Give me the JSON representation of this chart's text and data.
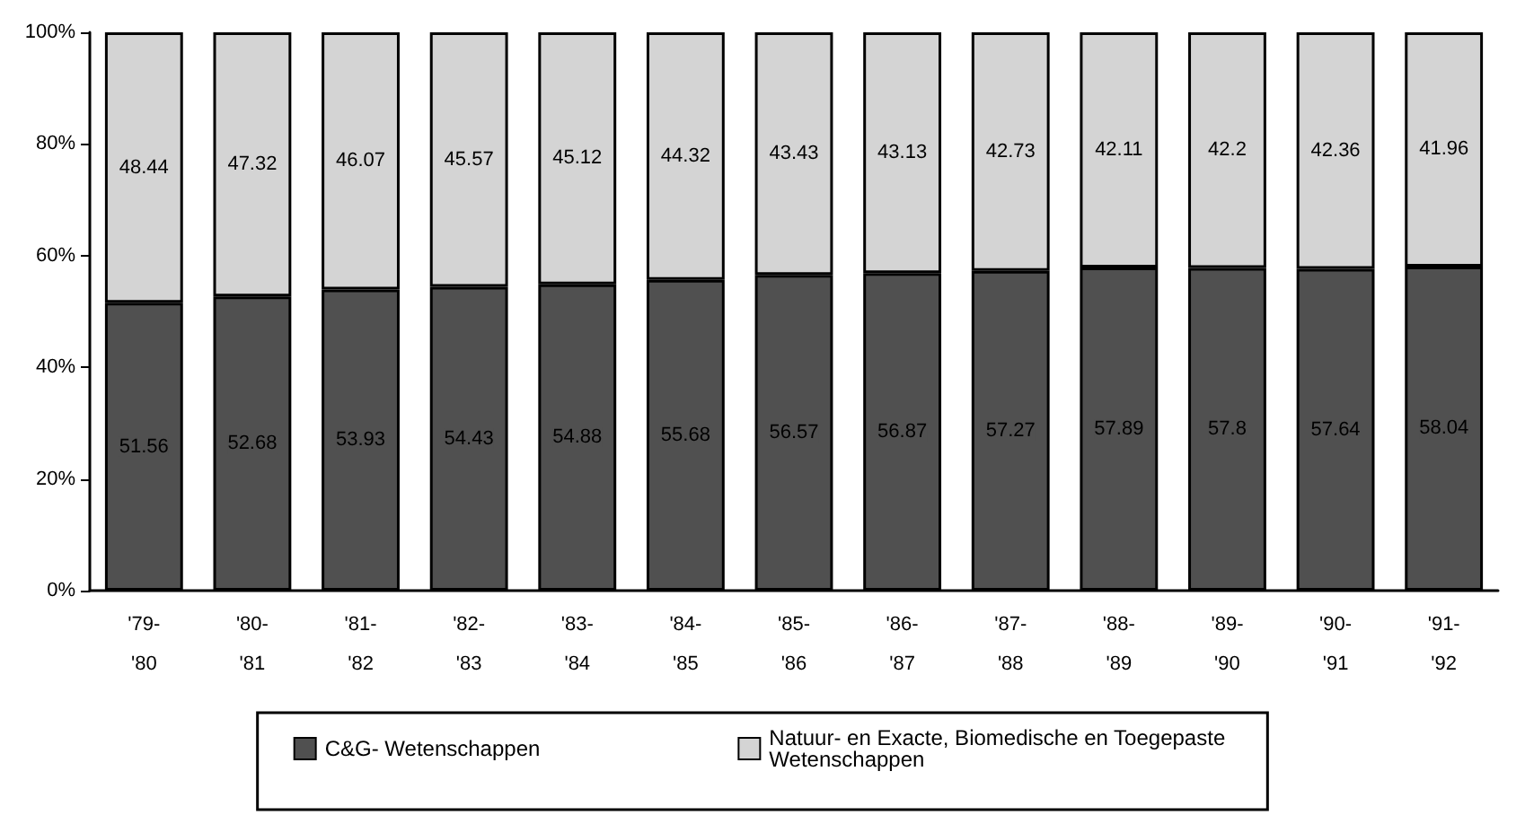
{
  "chart_data": {
    "type": "bar",
    "stacked": true,
    "categories": [
      "'79-\n'80",
      "'80-\n'81",
      "'81-\n'82",
      "'82-\n'83",
      "'83-\n'84",
      "'84-\n'85",
      "'85-\n'86",
      "'86-\n'87",
      "'87-\n'88",
      "'88-\n'89",
      "'89-\n'90",
      "'90-\n'91",
      "'91-\n'92"
    ],
    "series": [
      {
        "name": "C&G- Wetenschappen",
        "color": "#505050",
        "values": [
          51.56,
          52.68,
          53.93,
          54.43,
          54.88,
          55.68,
          56.57,
          56.87,
          57.27,
          57.89,
          57.8,
          57.64,
          58.04
        ]
      },
      {
        "name": "Natuur- en Exacte, Biomedische en Toegepaste Wetenschappen",
        "color": "#d4d4d4",
        "values": [
          48.44,
          47.32,
          46.07,
          45.57,
          45.12,
          44.32,
          43.43,
          43.13,
          42.73,
          42.11,
          42.2,
          42.36,
          41.96
        ]
      }
    ],
    "ylim": [
      0,
      100
    ],
    "yticks": [
      {
        "value": 0,
        "label": "0%"
      },
      {
        "value": 20,
        "label": "20%"
      },
      {
        "value": 40,
        "label": "40%"
      },
      {
        "value": 60,
        "label": "60%"
      },
      {
        "value": 80,
        "label": "80%"
      },
      {
        "value": 100,
        "label": "100%"
      }
    ],
    "data_labels": true,
    "legend": "bottom"
  }
}
